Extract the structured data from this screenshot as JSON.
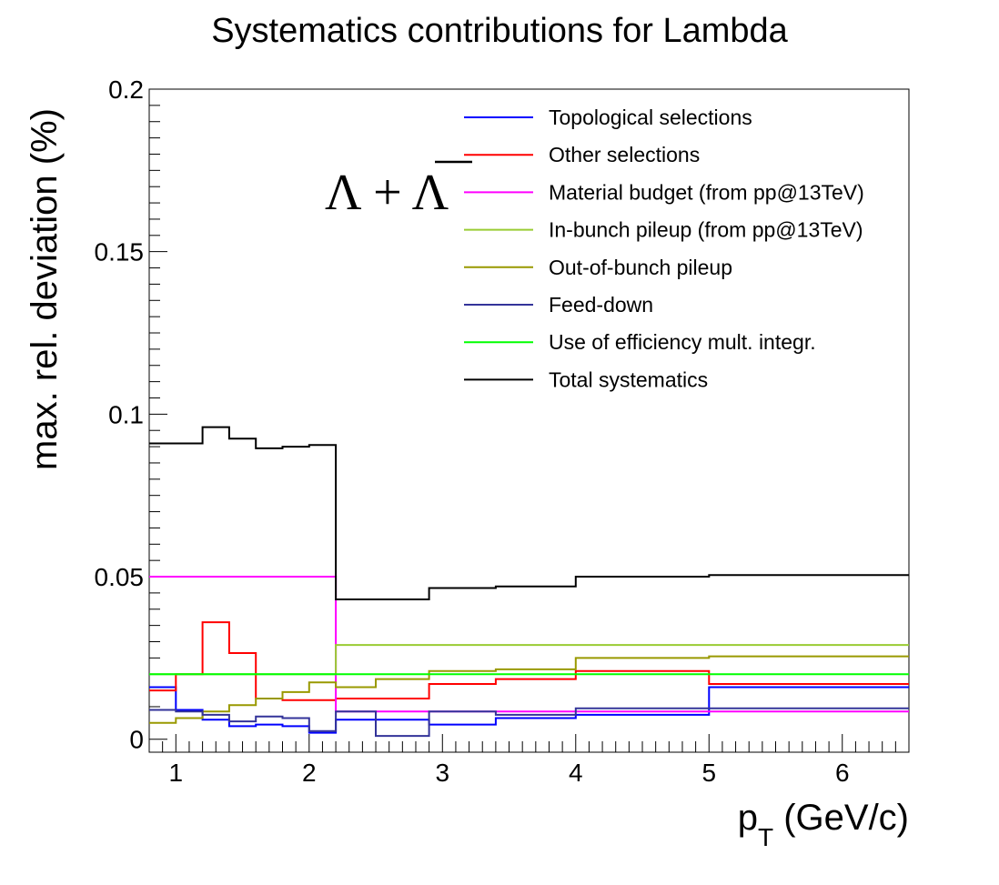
{
  "chart_data": {
    "type": "line",
    "title": "Systematics contributions for Lambda",
    "xlabel_main": "p",
    "xlabel_sub": "T",
    "xlabel_unit": " (GeV/c)",
    "ylabel": "max. rel. deviation (%)",
    "annotation": "Λ + Λ",
    "xlim": [
      0.8,
      6.5
    ],
    "ylim": [
      -0.004,
      0.2
    ],
    "x_ticks": [
      {
        "value": 1,
        "label": "1"
      },
      {
        "value": 2,
        "label": "2"
      },
      {
        "value": 3,
        "label": "3"
      },
      {
        "value": 4,
        "label": "4"
      },
      {
        "value": 5,
        "label": "5"
      },
      {
        "value": 6,
        "label": "6"
      }
    ],
    "y_ticks": [
      {
        "value": 0,
        "label": "0"
      },
      {
        "value": 0.05,
        "label": "0.05"
      },
      {
        "value": 0.1,
        "label": "0.1"
      },
      {
        "value": 0.15,
        "label": "0.15"
      },
      {
        "value": 0.2,
        "label": "0.2"
      }
    ],
    "bin_edges": [
      0.8,
      1.0,
      1.2,
      1.4,
      1.6,
      1.8,
      2.0,
      2.2,
      2.5,
      2.9,
      3.4,
      4.0,
      5.0,
      6.5
    ],
    "series": [
      {
        "name": "Topological selections",
        "color": "#0000ff",
        "values": [
          0.016,
          0.009,
          0.006,
          0.004,
          0.0045,
          0.004,
          0.002,
          0.006,
          0.006,
          0.0045,
          0.0065,
          0.0075,
          0.016
        ]
      },
      {
        "name": "Other selections",
        "color": "#ff0000",
        "values": [
          0.015,
          0.02,
          0.036,
          0.0265,
          0.0125,
          0.012,
          0.012,
          0.0125,
          0.0125,
          0.017,
          0.0185,
          0.021,
          0.017
        ]
      },
      {
        "name": "Material budget (from pp@13TeV)",
        "color": "#ff00ff",
        "values": [
          0.05,
          0.05,
          0.05,
          0.05,
          0.05,
          0.05,
          0.05,
          0.0085,
          0.0085,
          0.0085,
          0.0085,
          0.0085,
          0.0085
        ]
      },
      {
        "name": "In-bunch pileup (from pp@13TeV)",
        "color": "#99cc33",
        "values": [
          0.02,
          0.02,
          0.02,
          0.02,
          0.02,
          0.02,
          0.02,
          0.029,
          0.029,
          0.029,
          0.029,
          0.029,
          0.029
        ]
      },
      {
        "name": "Out-of-bunch pileup",
        "color": "#999900",
        "values": [
          0.005,
          0.0065,
          0.0085,
          0.0105,
          0.0125,
          0.0145,
          0.0175,
          0.016,
          0.0185,
          0.021,
          0.0215,
          0.025,
          0.0255
        ]
      },
      {
        "name": "Feed-down",
        "color": "#333399",
        "values": [
          0.009,
          0.0085,
          0.0075,
          0.0055,
          0.007,
          0.0065,
          0.0025,
          0.0085,
          0.001,
          0.0085,
          0.0075,
          0.0095,
          0.0095
        ]
      },
      {
        "name": "Use of efficiency mult. integr.",
        "color": "#00ff00",
        "values": [
          0.02,
          0.02,
          0.02,
          0.02,
          0.02,
          0.02,
          0.02,
          0.02,
          0.02,
          0.02,
          0.02,
          0.02,
          0.02
        ]
      },
      {
        "name": "Total systematics",
        "color": "#000000",
        "values": [
          0.091,
          0.091,
          0.096,
          0.0925,
          0.0895,
          0.09,
          0.0905,
          0.043,
          0.043,
          0.0465,
          0.047,
          0.05,
          0.0505
        ]
      }
    ]
  }
}
